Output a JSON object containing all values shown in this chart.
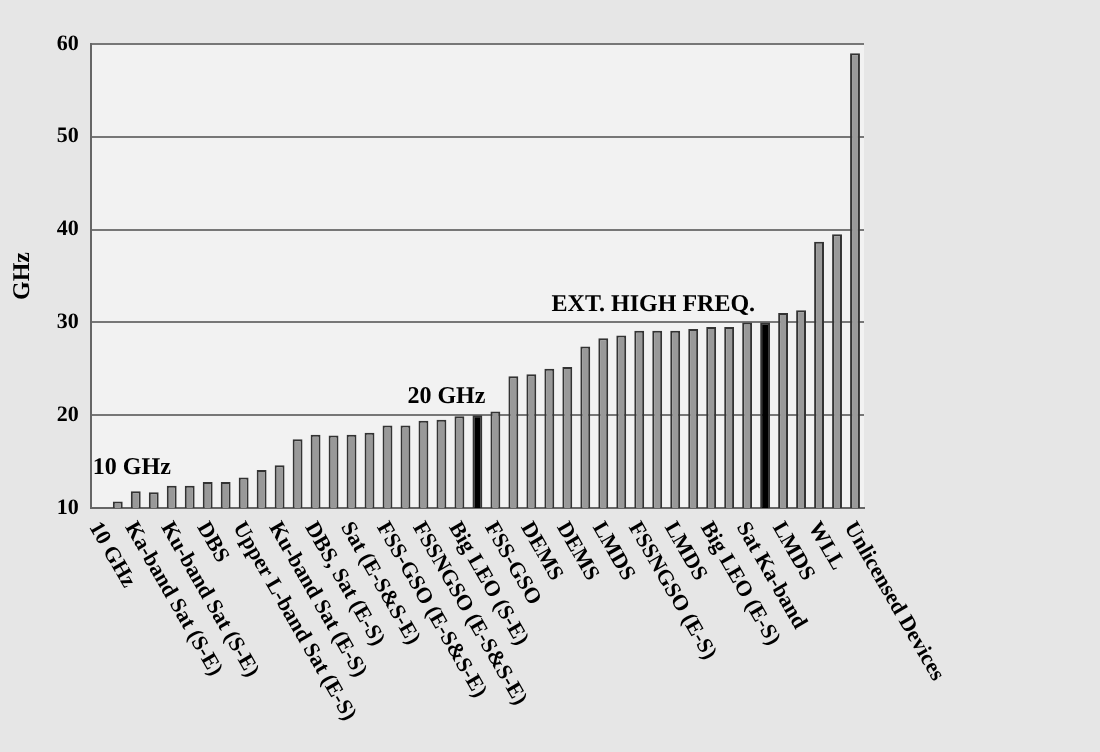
{
  "chart_data": {
    "type": "bar",
    "ylabel": "GHz",
    "categories": [
      "10 GHz",
      null,
      "Ka-band Sat (S-E)",
      null,
      "Ku-band Sat (S-E)",
      null,
      "DBS",
      null,
      "Upper L-band Sat (E-S)",
      null,
      "Ku-band Sat (E-S)",
      null,
      "DBS, Sat (E-S)",
      null,
      "Sat (E-S&S-E)",
      null,
      "FSS-GSO (E-S&S-E)",
      null,
      "FSSNGSO (E-S&S-E)",
      null,
      "Big LEO (S-E)",
      null,
      "FSS-GSO",
      null,
      "DEMS",
      null,
      "DEMS",
      null,
      "LMDS",
      null,
      "FSSNGSO (E-S)",
      null,
      "LMDS",
      null,
      "Big LEO (E-S)",
      null,
      "Sat Ka-band",
      null,
      "LMDS",
      null,
      "WLL",
      null,
      "Unlicensed Devices"
    ],
    "values": [
      10,
      10.7,
      11.8,
      11.7,
      12.4,
      12.4,
      12.8,
      12.8,
      13.3,
      14.1,
      14.6,
      17.4,
      17.9,
      17.8,
      17.9,
      18.1,
      18.9,
      18.9,
      19.4,
      19.5,
      19.9,
      20,
      20.4,
      24.2,
      24.4,
      25,
      25.2,
      27.4,
      28.3,
      28.6,
      29.1,
      29.1,
      29.1,
      29.3,
      29.5,
      29.5,
      30,
      30,
      31,
      31.3,
      38.7,
      39.5,
      59
    ],
    "colors": [
      "#999999",
      "#999999",
      "#999999",
      "#999999",
      "#999999",
      "#999999",
      "#999999",
      "#999999",
      "#999999",
      "#999999",
      "#999999",
      "#999999",
      "#999999",
      "#999999",
      "#999999",
      "#999999",
      "#999999",
      "#999999",
      "#999999",
      "#999999",
      "#999999",
      "#000000",
      "#999999",
      "#999999",
      "#999999",
      "#999999",
      "#999999",
      "#999999",
      "#999999",
      "#999999",
      "#999999",
      "#999999",
      "#999999",
      "#999999",
      "#999999",
      "#999999",
      "#999999",
      "#000000",
      "#999999",
      "#999999",
      "#999999",
      "#999999",
      "#999999"
    ],
    "ylim": [
      10,
      60
    ],
    "yticks": [
      10,
      20,
      30,
      40,
      50,
      60
    ],
    "grid": "y",
    "legend": false,
    "annotations": [
      {
        "text": "10 GHz",
        "y": 10
      },
      {
        "text": "20 GHz",
        "y": 20
      },
      {
        "text": "EXT. HIGH FREQ.",
        "y": 30
      }
    ]
  }
}
